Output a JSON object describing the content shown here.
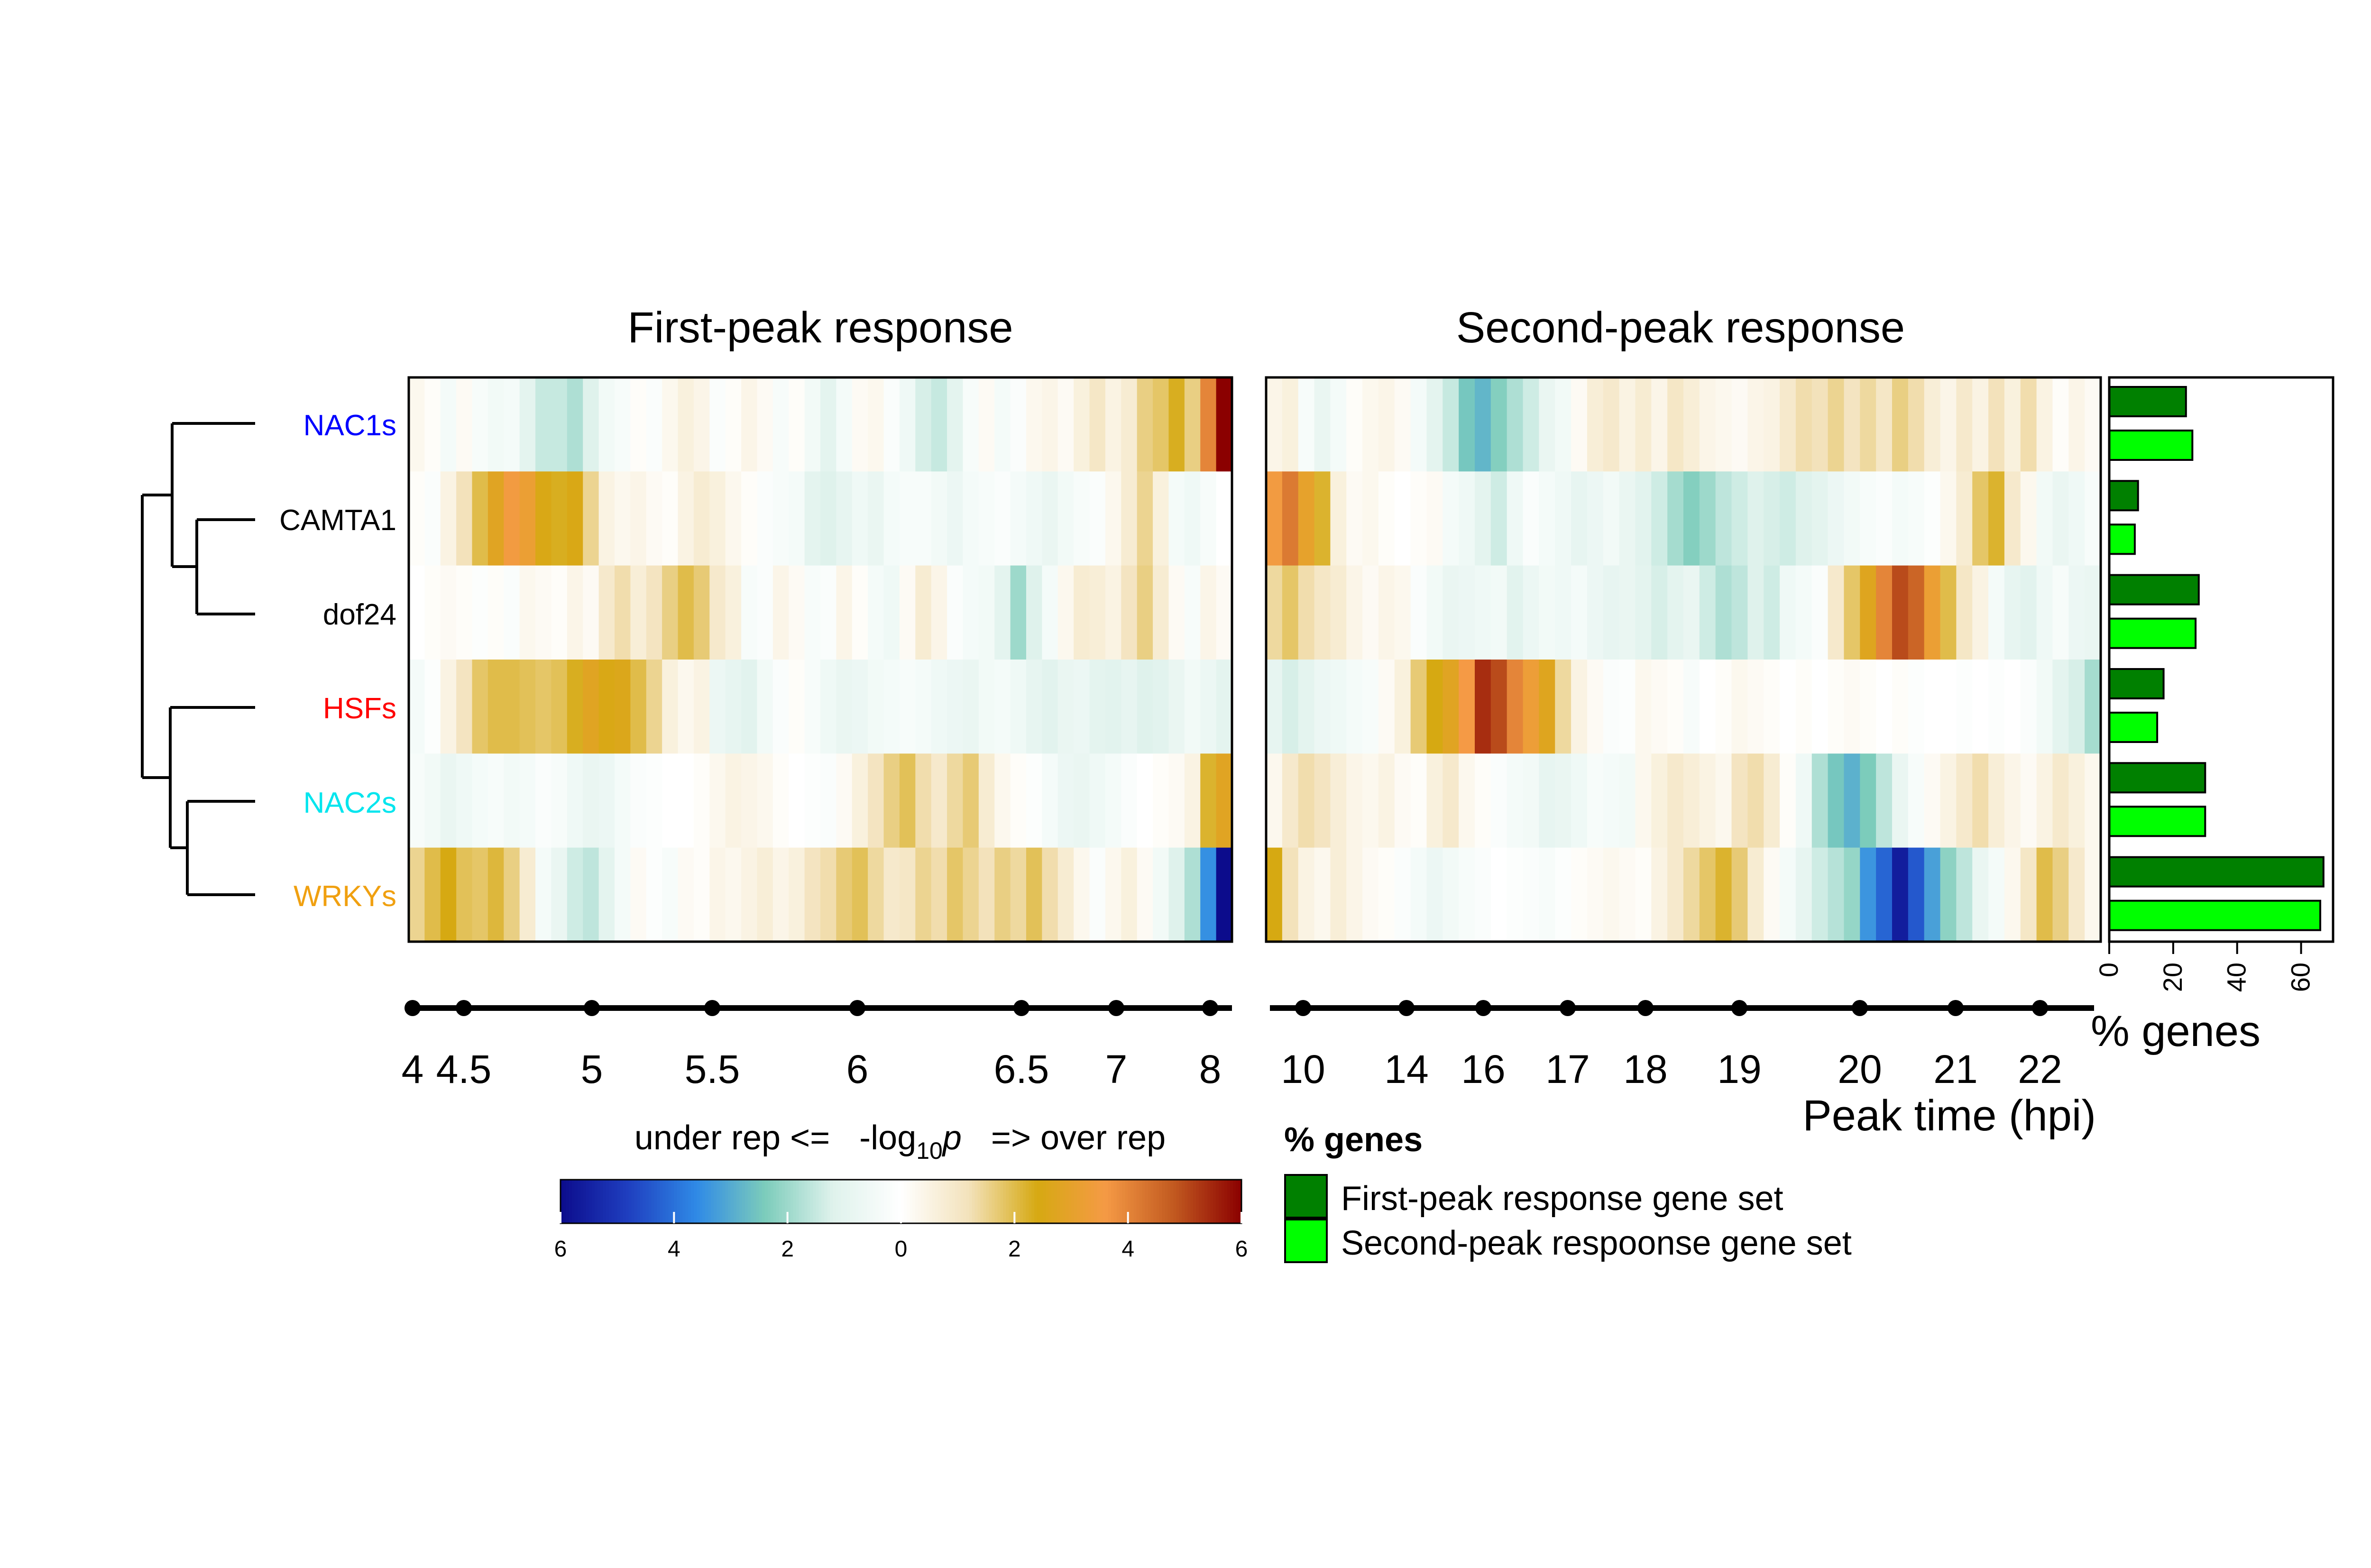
{
  "colors": {
    "heat_negative": [
      "#0c0c8c",
      "#1f3fc0",
      "#2f8ae6",
      "#7cccbb",
      "#dff2ec",
      "#ffffff"
    ],
    "heat_positive": [
      "#ffffff",
      "#f3e2bb",
      "#d6a912",
      "#f59a45",
      "#c25a20",
      "#8b0000"
    ],
    "bar_first": "#008000",
    "bar_second": "#00ff00",
    "frame": "#000000"
  },
  "chart_data": [
    {
      "id": "first-peak",
      "type": "heatmap",
      "title": "First-peak response",
      "rows": [
        "NAC1s",
        "CAMTA1",
        "dof24",
        "HSFs",
        "NAC2s",
        "WRKYs"
      ],
      "row_colors": [
        "#0000ff",
        "#000000",
        "#000000",
        "#ff0000",
        "#00ffff",
        "#ffa500"
      ],
      "columns": 52,
      "time_ticks": [
        4,
        4.5,
        5,
        5.5,
        6,
        6.5,
        7,
        8
      ],
      "values": [
        [
          0.3,
          0.1,
          -0.4,
          0.2,
          -0.3,
          -0.5,
          -0.4,
          -1.0,
          -1.5,
          -1.5,
          -1.8,
          -1.2,
          -0.5,
          -0.3,
          0.1,
          -0.2,
          0.3,
          0.6,
          0.4,
          -0.2,
          0.1,
          0.4,
          0.2,
          -0.3,
          0.1,
          -0.5,
          -1.0,
          -0.4,
          0.2,
          0.3,
          -0.2,
          -0.6,
          -1.3,
          -1.5,
          -1.0,
          -0.3,
          0.2,
          -0.4,
          -0.2,
          0.3,
          0.4,
          0.2,
          0.6,
          1.0,
          0.5,
          0.8,
          1.6,
          1.8,
          2.3,
          1.6,
          4.0,
          6.0
        ],
        [
          0.1,
          -0.2,
          0.5,
          1.2,
          2.0,
          2.8,
          3.5,
          3.2,
          2.5,
          2.3,
          2.5,
          1.5,
          0.5,
          0.3,
          0.4,
          0.2,
          0.1,
          0.5,
          0.8,
          0.6,
          0.3,
          0.1,
          -0.2,
          -0.3,
          -0.4,
          -1.0,
          -1.2,
          -0.9,
          -0.6,
          -0.8,
          -0.4,
          -0.3,
          -0.3,
          -0.5,
          -0.7,
          -0.4,
          -0.3,
          -0.2,
          -0.4,
          -0.6,
          -0.8,
          -0.5,
          -0.3,
          -0.2,
          0.3,
          0.8,
          1.5,
          0.6,
          -0.4,
          -0.6,
          -0.3,
          0.0
        ],
        [
          0.0,
          0.1,
          0.2,
          0.1,
          -0.1,
          0.1,
          -0.2,
          0.3,
          0.2,
          0.1,
          0.4,
          0.2,
          0.9,
          1.3,
          0.7,
          1.1,
          1.6,
          2.0,
          1.7,
          0.9,
          0.6,
          -0.3,
          -0.2,
          0.4,
          0.2,
          -0.3,
          -0.2,
          0.4,
          0.1,
          -0.4,
          -0.6,
          0.2,
          0.8,
          0.4,
          -0.2,
          -0.4,
          -0.5,
          -1.0,
          -2.0,
          -1.2,
          -0.4,
          0.3,
          0.8,
          0.7,
          0.5,
          1.1,
          1.6,
          0.8,
          0.2,
          -0.3,
          0.4,
          0.2
        ],
        [
          -0.4,
          -0.1,
          0.5,
          1.1,
          1.8,
          2.0,
          2.0,
          1.9,
          1.8,
          1.9,
          2.3,
          2.8,
          2.5,
          2.6,
          2.0,
          1.5,
          0.6,
          0.3,
          0.5,
          -0.7,
          -0.9,
          -1.1,
          -0.5,
          -0.2,
          0.1,
          -0.3,
          -0.6,
          -0.8,
          -0.7,
          -0.5,
          -0.4,
          -0.3,
          -0.4,
          -0.6,
          -0.7,
          -0.8,
          -0.5,
          -0.4,
          -0.6,
          -0.9,
          -1.1,
          -0.8,
          -0.7,
          -1.0,
          -1.1,
          -0.9,
          -1.2,
          -1.1,
          -0.8,
          -0.5,
          -0.7,
          -1.0
        ],
        [
          -0.3,
          -0.5,
          -0.8,
          -0.6,
          -0.4,
          -0.3,
          -0.5,
          -0.4,
          -0.2,
          -0.3,
          -0.6,
          -0.8,
          -0.7,
          -0.4,
          -0.2,
          -0.1,
          0.0,
          0.0,
          0.1,
          0.3,
          0.5,
          0.4,
          0.3,
          0.1,
          0.0,
          -0.1,
          -0.2,
          0.2,
          0.6,
          1.1,
          1.6,
          1.9,
          1.3,
          0.9,
          1.4,
          1.7,
          0.8,
          0.3,
          0.1,
          -0.1,
          -0.4,
          -0.7,
          -0.8,
          -0.6,
          -0.4,
          -0.2,
          0.0,
          0.1,
          0.2,
          0.5,
          2.2,
          2.8
        ],
        [
          1.5,
          2.0,
          2.4,
          1.9,
          1.8,
          2.1,
          1.6,
          0.8,
          -0.4,
          -0.8,
          -1.4,
          -1.6,
          -1.0,
          -0.4,
          0.2,
          -0.1,
          -0.3,
          0.2,
          0.1,
          0.4,
          0.3,
          0.5,
          0.7,
          0.4,
          0.6,
          1.1,
          1.3,
          1.7,
          1.9,
          1.4,
          0.9,
          1.0,
          1.5,
          1.3,
          1.8,
          1.5,
          1.2,
          1.6,
          1.4,
          1.9,
          1.3,
          0.8,
          0.3,
          -0.2,
          0.3,
          0.6,
          0.2,
          -0.5,
          -1.2,
          -1.8,
          -3.5,
          -6.0
        ]
      ]
    },
    {
      "id": "second-peak",
      "type": "heatmap",
      "title": "Second-peak response",
      "rows": [
        "NAC1s",
        "CAMTA1",
        "dof24",
        "HSFs",
        "NAC2s",
        "WRKYs"
      ],
      "columns": 52,
      "time_ticks": [
        10,
        14,
        16,
        17,
        18,
        19,
        20,
        21,
        22
      ],
      "xlabel": "Peak time (hpi)",
      "values": [
        [
          0.4,
          0.6,
          -0.3,
          -0.8,
          -0.4,
          0.1,
          0.3,
          0.4,
          0.2,
          -0.4,
          -1.0,
          -1.5,
          -2.5,
          -2.8,
          -2.3,
          -1.8,
          -1.4,
          -0.8,
          -0.5,
          0.2,
          0.7,
          0.9,
          0.5,
          0.8,
          0.4,
          1.0,
          0.7,
          0.4,
          0.3,
          0.2,
          0.4,
          0.5,
          0.9,
          1.3,
          1.2,
          1.5,
          1.1,
          1.4,
          1.0,
          1.6,
          1.3,
          0.7,
          0.4,
          0.9,
          0.5,
          1.2,
          0.6,
          1.3,
          0.5,
          0.1,
          0.4,
          0.2
        ],
        [
          3.5,
          4.2,
          3.0,
          2.2,
          0.6,
          0.2,
          0.3,
          0.1,
          0.0,
          0.1,
          0.2,
          -0.4,
          -0.6,
          -1.0,
          -1.4,
          -0.6,
          -0.2,
          -0.4,
          -0.6,
          -0.9,
          -0.7,
          -0.5,
          -0.8,
          -1.1,
          -1.4,
          -1.9,
          -2.3,
          -2.0,
          -1.6,
          -1.4,
          -1.2,
          -1.3,
          -1.4,
          -1.2,
          -1.0,
          -0.7,
          -0.5,
          -0.3,
          -0.2,
          -0.4,
          -0.3,
          -0.1,
          0.3,
          0.8,
          1.8,
          2.2,
          0.9,
          0.3,
          -0.5,
          -0.8,
          -0.6,
          -0.3
        ],
        [
          1.4,
          1.8,
          1.3,
          1.0,
          0.8,
          0.4,
          0.2,
          0.4,
          0.3,
          -0.2,
          -0.5,
          -0.8,
          -0.7,
          -0.6,
          -0.5,
          -1.1,
          -0.7,
          -0.5,
          -0.6,
          -0.4,
          -0.7,
          -0.9,
          -0.8,
          -1.0,
          -1.3,
          -1.0,
          -0.8,
          -1.4,
          -1.8,
          -1.6,
          -1.2,
          -1.4,
          -0.6,
          -0.4,
          -0.2,
          0.9,
          1.8,
          2.7,
          4.0,
          5.0,
          4.6,
          3.2,
          2.0,
          1.0,
          0.5,
          -0.4,
          -0.9,
          -1.1,
          -0.6,
          -0.3,
          -0.7,
          -0.8
        ],
        [
          -0.9,
          -1.3,
          -1.0,
          -0.7,
          -0.6,
          -0.4,
          -0.3,
          0.2,
          0.6,
          1.7,
          2.4,
          2.8,
          3.6,
          5.4,
          5.0,
          4.0,
          3.3,
          2.7,
          1.4,
          0.5,
          0.2,
          -0.2,
          -0.1,
          0.3,
          0.2,
          0.1,
          -0.3,
          0.0,
          0.1,
          0.3,
          0.2,
          0.1,
          0.0,
          0.1,
          0.0,
          0.1,
          0.2,
          0.1,
          0.0,
          0.1,
          -0.1,
          0.0,
          0.0,
          -0.1,
          0.0,
          -0.1,
          0.0,
          -0.2,
          -0.5,
          -1.0,
          -1.3,
          -1.9
        ],
        [
          0.3,
          0.9,
          1.3,
          1.1,
          0.7,
          0.4,
          0.3,
          0.5,
          0.2,
          0.1,
          0.6,
          0.9,
          0.3,
          0.1,
          -0.2,
          -0.4,
          -0.5,
          -0.9,
          -0.8,
          -0.6,
          -0.3,
          -0.4,
          -0.5,
          0.3,
          0.6,
          0.9,
          0.7,
          0.5,
          0.3,
          1.1,
          1.3,
          0.8,
          0.1,
          -0.6,
          -1.8,
          -2.5,
          -2.9,
          -2.4,
          -1.6,
          -0.8,
          -0.3,
          0.2,
          0.5,
          0.9,
          1.3,
          0.7,
          0.4,
          0.2,
          0.5,
          0.9,
          0.6,
          0.3
        ],
        [
          2.4,
          1.2,
          0.5,
          0.3,
          0.7,
          0.4,
          0.2,
          0.1,
          -0.2,
          -0.4,
          -0.7,
          -0.5,
          -0.3,
          -0.2,
          0.0,
          -0.1,
          -0.2,
          -0.3,
          -0.1,
          0.1,
          0.2,
          0.3,
          0.2,
          0.1,
          0.5,
          0.9,
          1.4,
          1.8,
          2.2,
          1.7,
          0.8,
          0.2,
          -0.4,
          -0.9,
          -1.4,
          -1.7,
          -2.1,
          -3.4,
          -4.2,
          -5.6,
          -4.4,
          -3.2,
          -2.2,
          -1.6,
          -0.8,
          -0.4,
          0.3,
          1.0,
          2.0,
          1.6,
          0.9,
          0.3
        ]
      ]
    },
    {
      "id": "percent-genes",
      "type": "bar",
      "orientation": "horizontal",
      "categories": [
        "NAC1s",
        "CAMTA1",
        "dof24",
        "HSFs",
        "NAC2s",
        "WRKYs"
      ],
      "series": [
        {
          "name": "First-peak response gene set",
          "values": [
            24,
            9,
            28,
            17,
            30,
            67
          ]
        },
        {
          "name": "Second-peak respoonse gene set",
          "values": [
            26,
            8,
            27,
            15,
            30,
            66
          ]
        }
      ],
      "xlim": [
        0,
        70
      ],
      "xticks": [
        0,
        20,
        40,
        60
      ],
      "xlabel": "% genes"
    }
  ],
  "colorbar": {
    "caption_left": "under rep  <=",
    "caption_mid": "-log",
    "caption_sub": "10",
    "caption_p": "p",
    "caption_right": "=>  over rep",
    "tick_labels": [
      "6",
      "4",
      "2",
      "0",
      "2",
      "4",
      "6"
    ],
    "range": [
      -6,
      6
    ]
  },
  "legend": {
    "title": "% genes",
    "items": [
      "First-peak response gene set",
      "Second-peak respoonse gene set"
    ]
  }
}
